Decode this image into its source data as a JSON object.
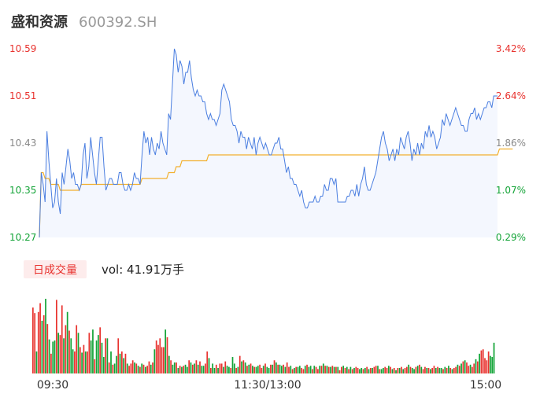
{
  "header": {
    "name": "盛和资源",
    "code": "600392.SH"
  },
  "colors": {
    "up": "#e8322e",
    "down": "#12a336",
    "neutral": "#888888",
    "price_line": "#4a7ee0",
    "avg_line": "#f2b02e",
    "area_fill": "#f4f7fe",
    "badge_bg": "#fdecec"
  },
  "volume_info": {
    "badge": "日成交量",
    "text": "vol: 41.91万手"
  },
  "chart_data": {
    "type": "line",
    "price_axis": {
      "ticks": [
        "10.59",
        "10.51",
        "10.43",
        "10.35",
        "10.27"
      ],
      "min": 10.27,
      "max": 10.59
    },
    "percent_axis": {
      "ticks": [
        "3.42%",
        "2.64%",
        "1.86%",
        "1.07%",
        "0.29%"
      ]
    },
    "time_labels": [
      "09:30",
      "11:30/13:00",
      "15:00"
    ],
    "price_series": [
      10.27,
      10.38,
      10.36,
      10.33,
      10.45,
      10.4,
      10.36,
      10.32,
      10.33,
      10.37,
      10.33,
      10.31,
      10.38,
      10.36,
      10.39,
      10.42,
      10.4,
      10.37,
      10.38,
      10.36,
      10.36,
      10.35,
      10.36,
      10.41,
      10.43,
      10.37,
      10.39,
      10.44,
      10.41,
      10.38,
      10.36,
      10.4,
      10.44,
      10.44,
      10.39,
      10.35,
      10.36,
      10.37,
      10.37,
      10.36,
      10.36,
      10.36,
      10.38,
      10.38,
      10.36,
      10.35,
      10.35,
      10.36,
      10.35,
      10.36,
      10.38,
      10.37,
      10.37,
      10.36,
      10.41,
      10.45,
      10.43,
      10.44,
      10.41,
      10.44,
      10.42,
      10.41,
      10.43,
      10.42,
      10.45,
      10.43,
      10.42,
      10.41,
      10.48,
      10.47,
      10.53,
      10.59,
      10.58,
      10.55,
      10.57,
      10.56,
      10.53,
      10.55,
      10.55,
      10.57,
      10.54,
      10.52,
      10.51,
      10.52,
      10.51,
      10.51,
      10.5,
      10.5,
      10.48,
      10.47,
      10.48,
      10.47,
      10.47,
      10.46,
      10.47,
      10.48,
      10.52,
      10.53,
      10.52,
      10.51,
      10.5,
      10.47,
      10.46,
      10.46,
      10.45,
      10.43,
      10.45,
      10.44,
      10.44,
      10.42,
      10.44,
      10.43,
      10.42,
      10.44,
      10.41,
      10.43,
      10.44,
      10.43,
      10.42,
      10.43,
      10.42,
      10.41,
      10.41,
      10.42,
      10.43,
      10.43,
      10.44,
      10.42,
      10.42,
      10.4,
      10.38,
      10.39,
      10.37,
      10.37,
      10.36,
      10.36,
      10.35,
      10.34,
      10.35,
      10.33,
      10.32,
      10.32,
      10.33,
      10.33,
      10.33,
      10.34,
      10.33,
      10.33,
      10.34,
      10.34,
      10.36,
      10.35,
      10.35,
      10.37,
      10.37,
      10.36,
      10.37,
      10.33,
      10.33,
      10.33,
      10.33,
      10.33,
      10.34,
      10.34,
      10.35,
      10.35,
      10.34,
      10.36,
      10.34,
      10.36,
      10.37,
      10.39,
      10.36,
      10.35,
      10.35,
      10.36,
      10.37,
      10.38,
      10.4,
      10.42,
      10.44,
      10.45,
      10.43,
      10.42,
      10.4,
      10.41,
      10.42,
      10.4,
      10.42,
      10.41,
      10.44,
      10.43,
      10.42,
      10.44,
      10.45,
      10.43,
      10.4,
      10.42,
      10.41,
      10.43,
      10.41,
      10.43,
      10.42,
      10.45,
      10.44,
      10.46,
      10.44,
      10.45,
      10.44,
      10.42,
      10.43,
      10.44,
      10.47,
      10.46,
      10.48,
      10.47,
      10.46,
      10.47,
      10.48,
      10.49,
      10.48,
      10.47,
      10.46,
      10.46,
      10.45,
      10.45,
      10.47,
      10.48,
      10.48,
      10.49,
      10.47,
      10.48,
      10.47,
      10.48,
      10.49,
      10.49,
      10.5,
      10.5,
      10.49,
      10.51,
      10.51,
      10.51
    ],
    "avg_series": [
      10.27,
      10.38,
      10.38,
      10.37,
      10.37,
      10.37,
      10.36,
      10.36,
      10.36,
      10.36,
      10.36,
      10.35,
      10.35,
      10.35,
      10.35,
      10.35,
      10.35,
      10.35,
      10.35,
      10.35,
      10.35,
      10.35,
      10.36,
      10.36,
      10.36,
      10.36,
      10.36,
      10.36,
      10.36,
      10.36,
      10.36,
      10.36,
      10.36,
      10.36,
      10.36,
      10.36,
      10.36,
      10.36,
      10.36,
      10.36,
      10.36,
      10.36,
      10.36,
      10.36,
      10.36,
      10.36,
      10.36,
      10.36,
      10.36,
      10.36,
      10.36,
      10.36,
      10.36,
      10.36,
      10.37,
      10.37,
      10.37,
      10.37,
      10.37,
      10.37,
      10.37,
      10.37,
      10.37,
      10.37,
      10.37,
      10.37,
      10.37,
      10.37,
      10.38,
      10.38,
      10.38,
      10.38,
      10.39,
      10.39,
      10.39,
      10.4,
      10.4,
      10.4,
      10.4,
      10.4,
      10.4,
      10.4,
      10.4,
      10.4,
      10.4,
      10.4,
      10.4,
      10.4,
      10.4,
      10.41,
      10.41,
      10.41,
      10.41,
      10.41,
      10.41,
      10.41,
      10.41,
      10.41,
      10.41,
      10.41,
      10.41,
      10.41,
      10.41,
      10.41,
      10.41,
      10.41,
      10.41,
      10.41,
      10.41,
      10.41,
      10.41,
      10.41,
      10.41,
      10.41,
      10.41,
      10.41,
      10.41,
      10.41,
      10.41,
      10.41,
      10.41,
      10.41,
      10.41,
      10.41,
      10.41,
      10.41,
      10.41,
      10.41,
      10.41,
      10.41,
      10.41,
      10.41,
      10.41,
      10.41,
      10.41,
      10.41,
      10.41,
      10.41,
      10.41,
      10.41,
      10.41,
      10.41,
      10.41,
      10.41,
      10.41,
      10.41,
      10.41,
      10.41,
      10.41,
      10.41,
      10.41,
      10.41,
      10.41,
      10.41,
      10.41,
      10.41,
      10.41,
      10.41,
      10.41,
      10.41,
      10.41,
      10.41,
      10.41,
      10.41,
      10.41,
      10.41,
      10.41,
      10.41,
      10.41,
      10.41,
      10.41,
      10.41,
      10.41,
      10.41,
      10.41,
      10.41,
      10.41,
      10.41,
      10.41,
      10.41,
      10.41,
      10.41,
      10.41,
      10.41,
      10.41,
      10.41,
      10.41,
      10.41,
      10.41,
      10.41,
      10.41,
      10.41,
      10.41,
      10.41,
      10.41,
      10.41,
      10.41,
      10.41,
      10.41,
      10.41,
      10.41,
      10.41,
      10.41,
      10.41,
      10.41,
      10.41,
      10.41,
      10.41,
      10.41,
      10.41,
      10.41,
      10.41,
      10.41,
      10.41,
      10.41,
      10.41,
      10.41,
      10.41,
      10.41,
      10.41,
      10.41,
      10.41,
      10.41,
      10.41,
      10.41,
      10.41,
      10.41,
      10.41,
      10.41,
      10.41,
      10.41,
      10.41,
      10.41,
      10.41,
      10.41,
      10.41,
      10.41,
      10.41,
      10.41,
      10.41,
      10.41,
      10.41,
      10.42,
      10.42,
      10.42,
      10.42,
      10.42,
      10.42,
      10.42,
      10.42
    ],
    "volume_values": [
      60,
      55,
      20,
      56,
      64,
      48,
      53,
      68,
      45,
      31,
      18,
      29,
      30,
      67,
      37,
      35,
      62,
      32,
      44,
      56,
      39,
      32,
      22,
      20,
      44,
      37,
      24,
      19,
      26,
      20,
      20,
      37,
      30,
      40,
      13,
      30,
      35,
      42,
      28,
      15,
      32,
      32,
      10,
      20,
      8,
      9,
      16,
      32,
      18,
      20,
      14,
      18,
      9,
      7,
      9,
      12,
      10,
      9,
      7,
      6,
      9,
      8,
      6,
      7,
      11,
      8,
      10,
      22,
      30,
      26,
      32,
      24,
      24,
      40,
      33,
      16,
      12,
      8,
      10,
      10,
      5,
      7,
      6,
      7,
      8,
      6,
      12,
      10,
      8,
      9,
      12,
      8,
      11,
      7,
      7,
      9,
      20,
      14,
      5,
      9,
      5,
      8,
      5,
      9,
      9,
      6,
      11,
      7,
      6,
      5,
      15,
      9,
      5,
      6,
      16,
      11,
      12,
      10,
      7,
      8,
      9,
      7,
      6,
      6,
      7,
      8,
      5,
      7,
      9,
      6,
      5,
      8,
      8,
      12,
      10,
      8,
      8,
      7,
      8,
      6,
      10,
      6,
      7,
      4,
      5,
      6,
      6,
      7,
      5,
      4,
      7,
      8,
      6,
      7,
      4,
      7,
      6,
      4,
      7,
      7,
      9,
      7,
      7,
      6,
      6,
      7,
      6,
      6,
      6,
      3,
      6,
      7,
      5,
      6,
      4,
      6,
      4,
      5,
      6,
      5,
      4,
      5,
      4,
      5,
      6,
      4,
      5,
      5,
      6,
      7,
      7,
      4,
      4,
      5,
      6,
      5,
      7,
      6,
      4,
      5,
      3,
      5,
      5,
      6,
      4,
      5,
      6,
      8,
      6,
      5,
      4,
      6,
      7,
      8,
      6,
      4,
      6,
      5,
      5,
      4,
      5,
      7,
      5,
      6,
      5,
      5,
      4,
      6,
      5,
      7,
      5,
      4,
      5,
      6,
      8,
      7,
      9,
      11,
      12,
      10,
      7,
      8,
      6,
      9,
      13,
      11,
      18,
      21,
      22,
      14,
      12,
      20,
      16,
      15,
      28
    ],
    "volume_colors": [
      "u",
      "u",
      "d",
      "u",
      "u",
      "d",
      "u",
      "d",
      "u",
      "d",
      "u",
      "d",
      "d",
      "u",
      "d",
      "u",
      "u",
      "d",
      "u",
      "d",
      "u",
      "d",
      "d",
      "u",
      "u",
      "d",
      "u",
      "d",
      "u",
      "d",
      "u",
      "u",
      "d",
      "d",
      "u",
      "d",
      "d",
      "u",
      "d",
      "d",
      "u",
      "d",
      "u",
      "d",
      "u",
      "d",
      "d",
      "u",
      "d",
      "u",
      "d",
      "u",
      "d",
      "u",
      "u",
      "u",
      "d",
      "u",
      "d",
      "u",
      "d",
      "u",
      "d",
      "u",
      "u",
      "d",
      "u",
      "d",
      "u",
      "u",
      "u",
      "u",
      "u",
      "d",
      "u",
      "d",
      "u",
      "d",
      "d",
      "u",
      "d",
      "u",
      "d",
      "u",
      "d",
      "d",
      "u",
      "d",
      "u",
      "d",
      "u",
      "d",
      "u",
      "d",
      "d",
      "u",
      "u",
      "d",
      "u",
      "d",
      "d",
      "u",
      "d",
      "u",
      "u",
      "d",
      "u",
      "d",
      "d",
      "u",
      "d",
      "d",
      "u",
      "d",
      "u",
      "d",
      "u",
      "d",
      "u",
      "d",
      "u",
      "d",
      "u",
      "d",
      "d",
      "u",
      "u",
      "d",
      "u",
      "d",
      "d",
      "u",
      "d",
      "u",
      "d",
      "u",
      "d",
      "d",
      "u",
      "d",
      "u",
      "u",
      "d",
      "u",
      "d",
      "u",
      "d",
      "d",
      "u",
      "u",
      "d",
      "u",
      "d",
      "d",
      "u",
      "d",
      "u",
      "u",
      "d",
      "u",
      "d",
      "u",
      "d",
      "u",
      "d",
      "u",
      "d",
      "u",
      "d",
      "u",
      "u",
      "d",
      "u",
      "d",
      "u",
      "d",
      "u",
      "d",
      "u",
      "u",
      "d",
      "d",
      "u",
      "d",
      "u",
      "d",
      "u",
      "d",
      "u",
      "u",
      "d",
      "u",
      "d",
      "d",
      "u",
      "u",
      "d",
      "u",
      "d",
      "u",
      "d",
      "u",
      "d",
      "u",
      "d",
      "u",
      "u",
      "d",
      "u",
      "d",
      "d",
      "u",
      "d",
      "u",
      "d",
      "u",
      "u",
      "d",
      "u",
      "d",
      "u",
      "u",
      "d",
      "u",
      "d",
      "d",
      "u",
      "d",
      "u",
      "d",
      "u",
      "d",
      "u",
      "u",
      "d",
      "u",
      "d",
      "u",
      "d",
      "u",
      "u",
      "d",
      "u",
      "u",
      "d",
      "u",
      "d",
      "u",
      "u",
      "u",
      "u",
      "u"
    ]
  }
}
